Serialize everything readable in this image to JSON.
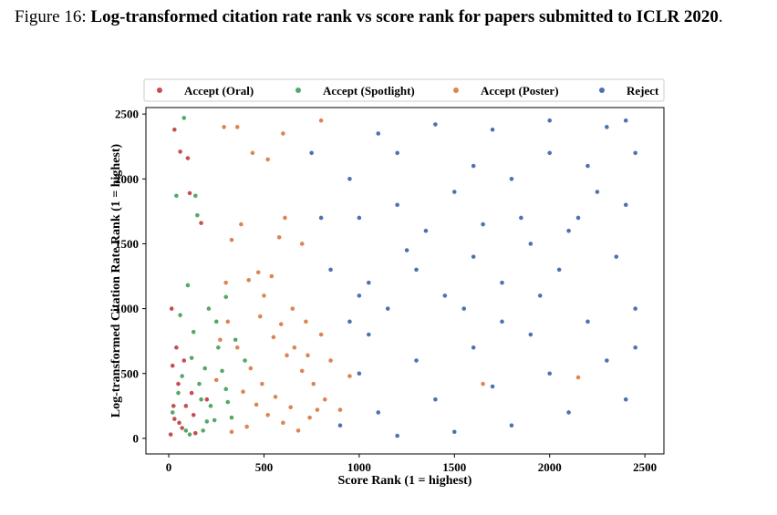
{
  "caption": {
    "label": "Figure 16:",
    "text": "Log-transformed citation rate rank vs score rank for papers submitted to ICLR 2020",
    "end": "."
  },
  "colors": {
    "accept_oral": "#c44e52",
    "accept_spotlight": "#55a868",
    "accept_poster": "#dd8452",
    "reject": "#4c72b0"
  },
  "chart_data": {
    "type": "scatter",
    "xlabel": "Score Rank (1 = highest)",
    "ylabel": "Log-transformed Citation Rate Rank (1 = highest)",
    "xlim": [
      -120,
      2600
    ],
    "ylim": [
      -120,
      2550
    ],
    "xticks": [
      0,
      500,
      1000,
      1500,
      2000,
      2500
    ],
    "yticks": [
      0,
      500,
      1000,
      1500,
      2000,
      2500
    ],
    "grid": false,
    "legend_position": "top",
    "series": [
      {
        "name": "Accept (Oral)",
        "color": "#c44e52",
        "points": [
          [
            10,
            30
          ],
          [
            30,
            150
          ],
          [
            50,
            420
          ],
          [
            20,
            560
          ],
          [
            70,
            80
          ],
          [
            90,
            250
          ],
          [
            120,
            350
          ],
          [
            40,
            700
          ],
          [
            15,
            1000
          ],
          [
            140,
            40
          ],
          [
            60,
            2210
          ],
          [
            100,
            2160
          ],
          [
            30,
            2380
          ],
          [
            170,
            1660
          ],
          [
            110,
            1890
          ],
          [
            200,
            300
          ],
          [
            80,
            600
          ],
          [
            25,
            250
          ],
          [
            55,
            120
          ],
          [
            130,
            180
          ]
        ]
      },
      {
        "name": "Accept (Spotlight)",
        "color": "#55a868",
        "points": [
          [
            80,
            2470
          ],
          [
            40,
            1870
          ],
          [
            140,
            1870
          ],
          [
            150,
            1720
          ],
          [
            100,
            1180
          ],
          [
            60,
            950
          ],
          [
            130,
            820
          ],
          [
            200,
            130
          ],
          [
            160,
            420
          ],
          [
            20,
            200
          ],
          [
            250,
            900
          ],
          [
            180,
            60
          ],
          [
            300,
            380
          ],
          [
            90,
            60
          ],
          [
            220,
            250
          ],
          [
            120,
            620
          ],
          [
            280,
            520
          ],
          [
            50,
            350
          ],
          [
            330,
            160
          ],
          [
            260,
            700
          ],
          [
            170,
            300
          ],
          [
            70,
            480
          ],
          [
            210,
            1000
          ],
          [
            350,
            760
          ],
          [
            240,
            140
          ],
          [
            110,
            30
          ],
          [
            190,
            540
          ],
          [
            300,
            1090
          ],
          [
            400,
            600
          ],
          [
            310,
            280
          ]
        ]
      },
      {
        "name": "Accept (Poster)",
        "color": "#dd8452",
        "points": [
          [
            360,
            2400
          ],
          [
            600,
            2350
          ],
          [
            800,
            2450
          ],
          [
            290,
            2400
          ],
          [
            440,
            2200
          ],
          [
            520,
            2150
          ],
          [
            330,
            1530
          ],
          [
            580,
            1550
          ],
          [
            700,
            1500
          ],
          [
            610,
            1700
          ],
          [
            380,
            1650
          ],
          [
            950,
            480
          ],
          [
            1650,
            420
          ],
          [
            2150,
            470
          ],
          [
            900,
            220
          ],
          [
            420,
            1220
          ],
          [
            480,
            940
          ],
          [
            550,
            780
          ],
          [
            620,
            640
          ],
          [
            700,
            520
          ],
          [
            760,
            420
          ],
          [
            390,
            360
          ],
          [
            460,
            260
          ],
          [
            520,
            180
          ],
          [
            600,
            120
          ],
          [
            680,
            60
          ],
          [
            740,
            160
          ],
          [
            310,
            900
          ],
          [
            360,
            700
          ],
          [
            430,
            540
          ],
          [
            490,
            420
          ],
          [
            560,
            320
          ],
          [
            640,
            240
          ],
          [
            300,
            1200
          ],
          [
            500,
            1100
          ],
          [
            650,
            1000
          ],
          [
            720,
            900
          ],
          [
            800,
            800
          ],
          [
            820,
            300
          ],
          [
            850,
            600
          ],
          [
            250,
            450
          ],
          [
            270,
            760
          ],
          [
            330,
            50
          ],
          [
            410,
            90
          ],
          [
            470,
            1280
          ],
          [
            540,
            1250
          ],
          [
            590,
            880
          ],
          [
            660,
            700
          ],
          [
            730,
            640
          ],
          [
            780,
            220
          ]
        ]
      },
      {
        "name": "Reject",
        "color": "#4c72b0",
        "points": [
          [
            1100,
            2350
          ],
          [
            1400,
            2420
          ],
          [
            1700,
            2380
          ],
          [
            2000,
            2450
          ],
          [
            2300,
            2400
          ],
          [
            2450,
            2200
          ],
          [
            2200,
            2100
          ],
          [
            1800,
            2000
          ],
          [
            1500,
            1900
          ],
          [
            1200,
            1800
          ],
          [
            1000,
            1700
          ],
          [
            2400,
            1800
          ],
          [
            2100,
            1600
          ],
          [
            1900,
            1500
          ],
          [
            1600,
            1400
          ],
          [
            1300,
            1300
          ],
          [
            1050,
            1200
          ],
          [
            2350,
            1400
          ],
          [
            2050,
            1300
          ],
          [
            1750,
            1200
          ],
          [
            1450,
            1100
          ],
          [
            1150,
            1000
          ],
          [
            950,
            900
          ],
          [
            2450,
            1000
          ],
          [
            2200,
            900
          ],
          [
            1900,
            800
          ],
          [
            1600,
            700
          ],
          [
            1300,
            600
          ],
          [
            1000,
            500
          ],
          [
            2300,
            600
          ],
          [
            2000,
            500
          ],
          [
            1700,
            400
          ],
          [
            1400,
            300
          ],
          [
            1100,
            200
          ],
          [
            900,
            100
          ],
          [
            2400,
            300
          ],
          [
            2100,
            200
          ],
          [
            1800,
            100
          ],
          [
            1500,
            50
          ],
          [
            1200,
            20
          ],
          [
            1000,
            1100
          ],
          [
            1200,
            2200
          ],
          [
            1600,
            2100
          ],
          [
            2000,
            2200
          ],
          [
            2250,
            1900
          ],
          [
            1350,
            1600
          ],
          [
            1850,
            1700
          ],
          [
            2150,
            1700
          ],
          [
            1550,
            1000
          ],
          [
            850,
            1300
          ],
          [
            800,
            1700
          ],
          [
            950,
            2000
          ],
          [
            750,
            2200
          ],
          [
            1050,
            800
          ],
          [
            2400,
            2450
          ],
          [
            2450,
            700
          ],
          [
            1750,
            900
          ],
          [
            1950,
            1100
          ],
          [
            1250,
            1450
          ],
          [
            1650,
            1650
          ]
        ]
      }
    ]
  }
}
